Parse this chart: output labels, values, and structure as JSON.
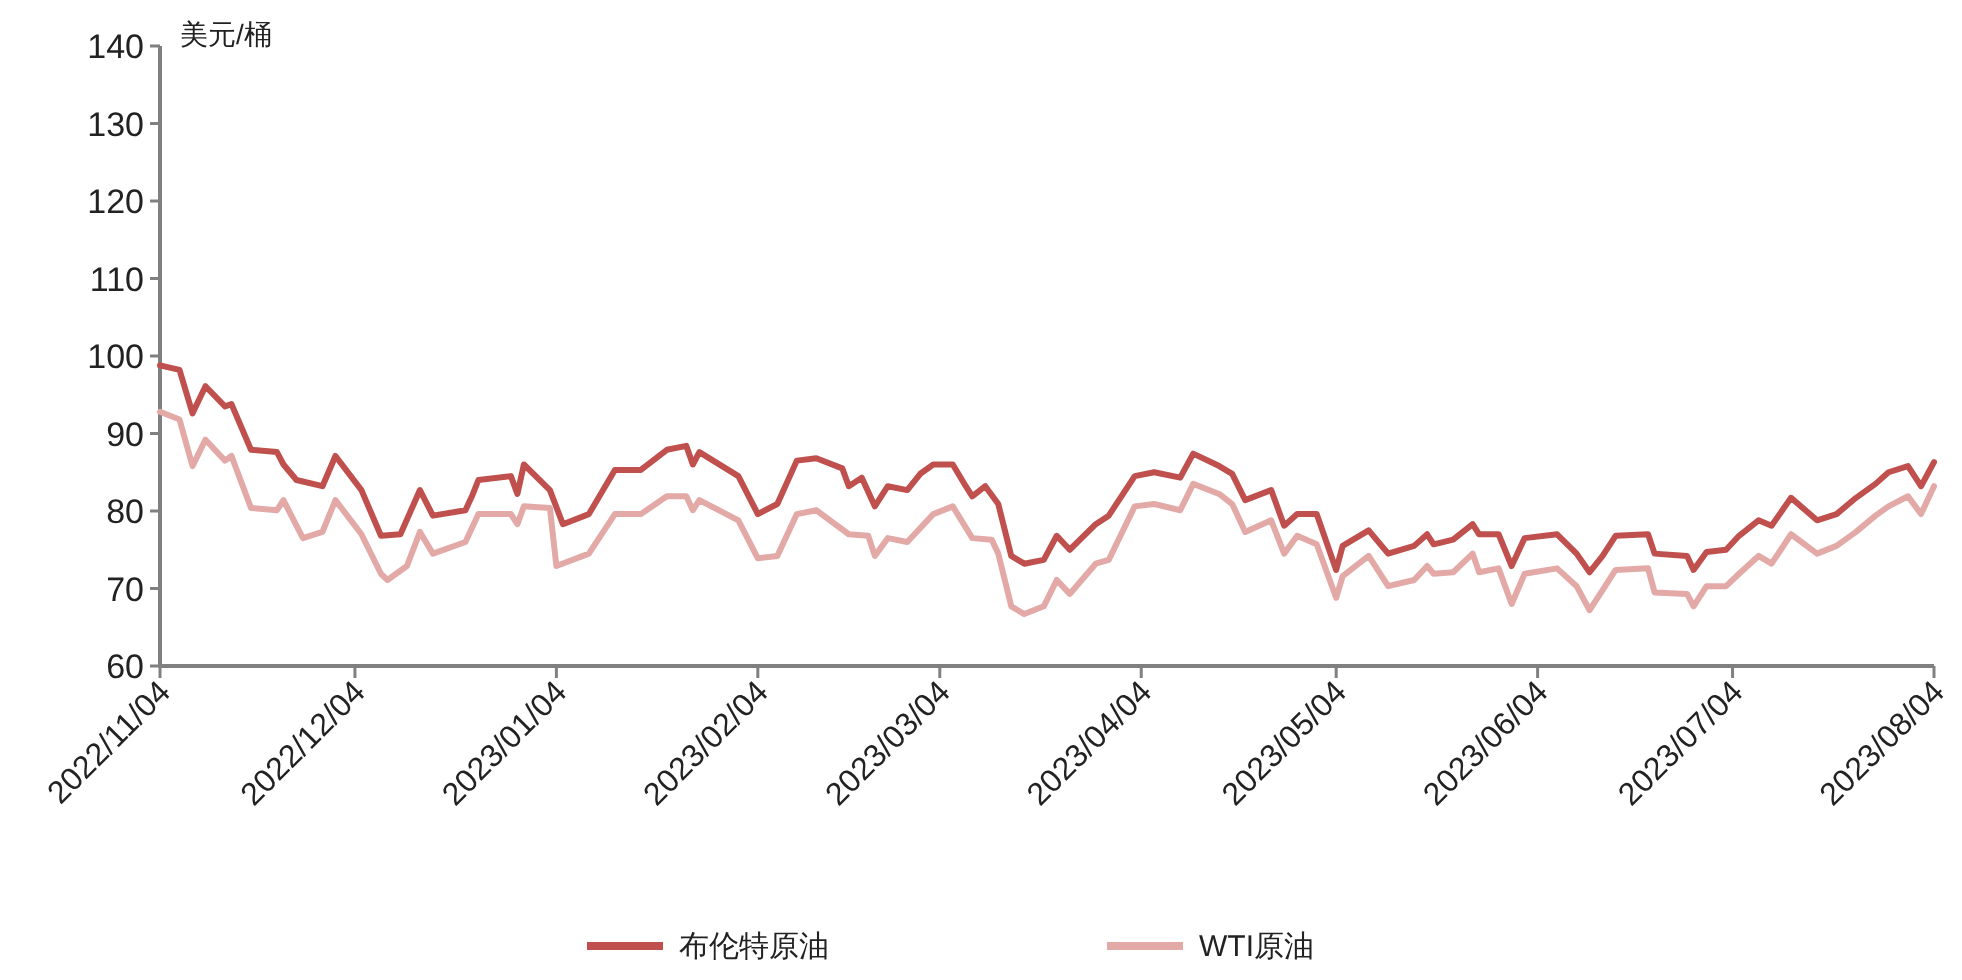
{
  "chart_data": {
    "type": "line",
    "ylabel": "美元/桶",
    "ylim": [
      60,
      140
    ],
    "yticks": [
      60,
      70,
      80,
      90,
      100,
      110,
      120,
      130,
      140
    ],
    "xlim": [
      "2022-11-04",
      "2023-08-04"
    ],
    "xticks": [
      {
        "value": "2022-11-04",
        "label": "2022/11/04"
      },
      {
        "value": "2022-12-04",
        "label": "2022/12/04"
      },
      {
        "value": "2023-01-04",
        "label": "2023/01/04"
      },
      {
        "value": "2023-02-04",
        "label": "2023/02/04"
      },
      {
        "value": "2023-03-04",
        "label": "2023/03/04"
      },
      {
        "value": "2023-04-04",
        "label": "2023/04/04"
      },
      {
        "value": "2023-05-04",
        "label": "2023/05/04"
      },
      {
        "value": "2023-06-04",
        "label": "2023/06/04"
      },
      {
        "value": "2023-07-04",
        "label": "2023/07/04"
      },
      {
        "value": "2023-08-04",
        "label": "2023/08/04"
      }
    ],
    "legend": "bottom",
    "series": [
      {
        "name": "布伦特原油",
        "color": "#c0504d",
        "x": [
          "2022-11-04",
          "2022-11-07",
          "2022-11-09",
          "2022-11-11",
          "2022-11-14",
          "2022-11-15",
          "2022-11-18",
          "2022-11-22",
          "2022-11-23",
          "2022-11-25",
          "2022-11-29",
          "2022-12-01",
          "2022-12-05",
          "2022-12-08",
          "2022-12-11",
          "2022-12-14",
          "2022-12-16",
          "2022-12-21",
          "2022-12-22",
          "2022-12-23",
          "2022-12-28",
          "2022-12-29",
          "2022-12-30",
          "2023-01-03",
          "2023-01-05",
          "2023-01-09",
          "2023-01-13",
          "2023-01-17",
          "2023-01-21",
          "2023-01-24",
          "2023-01-25",
          "2023-01-26",
          "2023-02-01",
          "2023-02-04",
          "2023-02-07",
          "2023-02-10",
          "2023-02-13",
          "2023-02-17",
          "2023-02-18",
          "2023-02-20",
          "2023-02-22",
          "2023-02-24",
          "2023-02-27",
          "2023-03-01",
          "2023-03-03",
          "2023-03-06",
          "2023-03-08",
          "2023-03-09",
          "2023-03-11",
          "2023-03-13",
          "2023-03-15",
          "2023-03-17",
          "2023-03-20",
          "2023-03-22",
          "2023-03-24",
          "2023-03-28",
          "2023-03-30",
          "2023-04-03",
          "2023-04-06",
          "2023-04-10",
          "2023-04-12",
          "2023-04-16",
          "2023-04-18",
          "2023-04-20",
          "2023-04-24",
          "2023-04-26",
          "2023-04-28",
          "2023-05-01",
          "2023-05-04",
          "2023-05-05",
          "2023-05-09",
          "2023-05-12",
          "2023-05-16",
          "2023-05-18",
          "2023-05-19",
          "2023-05-22",
          "2023-05-25",
          "2023-05-26",
          "2023-05-29",
          "2023-05-31",
          "2023-06-02",
          "2023-06-07",
          "2023-06-10",
          "2023-06-12",
          "2023-06-14",
          "2023-06-16",
          "2023-06-21",
          "2023-06-22",
          "2023-06-27",
          "2023-06-28",
          "2023-06-30",
          "2023-07-03",
          "2023-07-05",
          "2023-07-08",
          "2023-07-10",
          "2023-07-13",
          "2023-07-17",
          "2023-07-20",
          "2023-07-23",
          "2023-07-26",
          "2023-07-28",
          "2023-07-31",
          "2023-08-02",
          "2023-08-04"
        ],
        "values": [
          98.8,
          98.2,
          92.6,
          96.1,
          93.5,
          93.8,
          87.9,
          87.6,
          86,
          84,
          83.2,
          87.1,
          82.7,
          76.8,
          77,
          82.7,
          79.4,
          80.1,
          81.9,
          84,
          84.5,
          82.2,
          86,
          82.7,
          78.3,
          79.6,
          85.3,
          85.3,
          87.9,
          88.4,
          86,
          87.6,
          84.5,
          79.6,
          80.9,
          86.5,
          86.8,
          85.5,
          83.2,
          84.3,
          80.6,
          83.2,
          82.7,
          84.8,
          86,
          86,
          83.2,
          81.9,
          83.2,
          80.9,
          74.2,
          73.2,
          73.7,
          76.8,
          75,
          78.3,
          79.4,
          84.5,
          85,
          84.3,
          87.4,
          85.8,
          84.8,
          81.4,
          82.7,
          78.1,
          79.6,
          79.6,
          72.4,
          75.5,
          77.5,
          74.5,
          75.5,
          77,
          75.7,
          76.3,
          78.3,
          77,
          77,
          72.9,
          76.5,
          77,
          74.5,
          72.1,
          74.2,
          76.8,
          77,
          74.5,
          74.2,
          72.4,
          74.7,
          75,
          76.8,
          78.8,
          78.1,
          81.7,
          78.8,
          79.6,
          81.7,
          83.5,
          85,
          85.8,
          83.2,
          86.3
        ]
      },
      {
        "name": "WTI原油",
        "color": "#e2a9a7",
        "x": [
          "2022-11-04",
          "2022-11-07",
          "2022-11-09",
          "2022-11-11",
          "2022-11-14",
          "2022-11-15",
          "2022-11-18",
          "2022-11-22",
          "2022-11-23",
          "2022-11-25",
          "2022-11-26",
          "2022-11-29",
          "2022-12-01",
          "2022-12-05",
          "2022-12-08",
          "2022-12-09",
          "2022-12-12",
          "2022-12-14",
          "2022-12-16",
          "2022-12-21",
          "2022-12-23",
          "2022-12-28",
          "2022-12-29",
          "2022-12-30",
          "2023-01-03",
          "2023-01-04",
          "2023-01-09",
          "2023-01-13",
          "2023-01-17",
          "2023-01-21",
          "2023-01-24",
          "2023-01-25",
          "2023-01-26",
          "2023-02-01",
          "2023-02-04",
          "2023-02-07",
          "2023-02-10",
          "2023-02-13",
          "2023-02-18",
          "2023-02-21",
          "2023-02-22",
          "2023-02-24",
          "2023-02-27",
          "2023-03-03",
          "2023-03-06",
          "2023-03-09",
          "2023-03-12",
          "2023-03-13",
          "2023-03-15",
          "2023-03-17",
          "2023-03-20",
          "2023-03-22",
          "2023-03-24",
          "2023-03-28",
          "2023-03-30",
          "2023-04-03",
          "2023-04-06",
          "2023-04-10",
          "2023-04-12",
          "2023-04-16",
          "2023-04-18",
          "2023-04-20",
          "2023-04-24",
          "2023-04-26",
          "2023-04-28",
          "2023-05-01",
          "2023-05-04",
          "2023-05-05",
          "2023-05-09",
          "2023-05-12",
          "2023-05-16",
          "2023-05-18",
          "2023-05-19",
          "2023-05-22",
          "2023-05-25",
          "2023-05-26",
          "2023-05-29",
          "2023-05-31",
          "2023-06-02",
          "2023-06-07",
          "2023-06-10",
          "2023-06-12",
          "2023-06-14",
          "2023-06-16",
          "2023-06-21",
          "2023-06-22",
          "2023-06-27",
          "2023-06-28",
          "2023-06-30",
          "2023-07-03",
          "2023-07-05",
          "2023-07-08",
          "2023-07-10",
          "2023-07-13",
          "2023-07-17",
          "2023-07-20",
          "2023-07-23",
          "2023-07-26",
          "2023-07-28",
          "2023-07-31",
          "2023-08-02",
          "2023-08-04"
        ],
        "values": [
          92.8,
          91.8,
          85.8,
          89.2,
          86.5,
          87.1,
          80.4,
          80.1,
          81.4,
          78.1,
          76.5,
          77.3,
          81.4,
          77,
          71.9,
          71.1,
          72.9,
          77.3,
          74.5,
          76,
          79.6,
          79.6,
          78.3,
          80.6,
          80.4,
          72.9,
          74.5,
          79.6,
          79.6,
          81.9,
          81.9,
          80.1,
          81.4,
          78.8,
          73.9,
          74.2,
          79.6,
          80.1,
          77,
          76.8,
          74.2,
          76.5,
          76,
          79.6,
          80.6,
          76.5,
          76.3,
          74.5,
          67.7,
          66.7,
          67.7,
          71.1,
          69.3,
          73.2,
          73.7,
          80.6,
          80.9,
          80.1,
          83.5,
          82.2,
          80.9,
          77.3,
          78.8,
          74.5,
          76.8,
          75.7,
          68.8,
          71.6,
          74.2,
          70.3,
          71.1,
          72.9,
          71.9,
          72.1,
          74.5,
          72.1,
          72.6,
          68,
          71.9,
          72.6,
          70.3,
          67.2,
          69.8,
          72.4,
          72.6,
          69.5,
          69.3,
          67.7,
          70.3,
          70.3,
          71.9,
          74.2,
          73.2,
          77,
          74.5,
          75.5,
          77.3,
          79.4,
          80.6,
          81.9,
          79.6,
          83.2
        ]
      }
    ]
  }
}
